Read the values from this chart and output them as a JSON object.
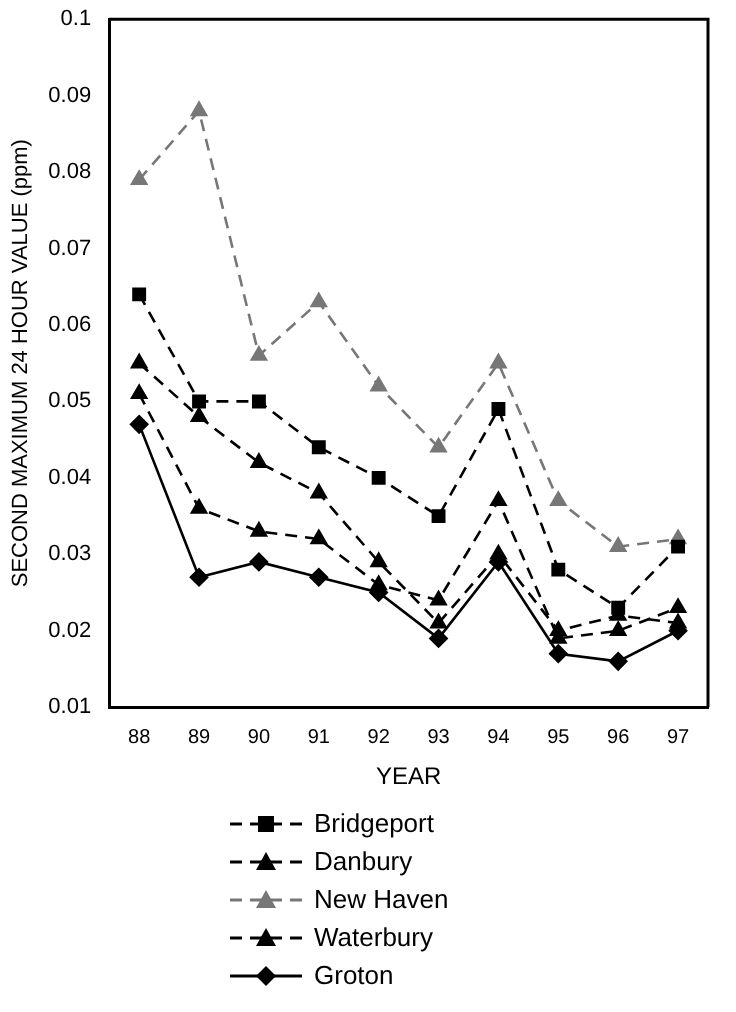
{
  "chart_data": {
    "type": "line",
    "xlabel": "YEAR",
    "ylabel": "SECOND MAXIMUM 24 HOUR VALUE (ppm)",
    "categories": [
      "88",
      "89",
      "90",
      "91",
      "92",
      "93",
      "94",
      "95",
      "96",
      "97"
    ],
    "ylim": [
      0.01,
      0.1
    ],
    "yticks": [
      0.01,
      0.02,
      0.03,
      0.04,
      0.05,
      0.06,
      0.07,
      0.08,
      0.09,
      0.1
    ],
    "grid": false,
    "legend": "bottom",
    "series": [
      {
        "name": "Bridgeport",
        "color": "#000000",
        "marker": "square",
        "line_style": "dashed",
        "values": [
          0.064,
          0.05,
          0.05,
          0.044,
          0.04,
          0.035,
          0.049,
          0.028,
          0.023,
          0.031
        ]
      },
      {
        "name": "Danbury",
        "color": "#000000",
        "marker": "triangle",
        "line_style": "dashed",
        "values": [
          0.051,
          0.036,
          0.033,
          0.032,
          0.026,
          0.024,
          0.037,
          0.019,
          0.02,
          0.023
        ]
      },
      {
        "name": "New Haven",
        "color": "#777777",
        "marker": "triangle",
        "line_style": "dashed",
        "values": [
          0.079,
          0.088,
          0.056,
          0.063,
          0.052,
          0.044,
          0.055,
          0.037,
          0.031,
          0.032
        ]
      },
      {
        "name": "Waterbury",
        "color": "#000000",
        "marker": "triangle",
        "line_style": "dashed",
        "values": [
          0.055,
          0.048,
          0.042,
          0.038,
          0.029,
          0.021,
          0.03,
          0.02,
          0.022,
          0.021
        ]
      },
      {
        "name": "Groton",
        "color": "#000000",
        "marker": "diamond",
        "line_style": "solid",
        "values": [
          0.047,
          0.027,
          0.029,
          0.027,
          0.025,
          0.019,
          0.029,
          0.017,
          0.016,
          0.02
        ]
      }
    ]
  }
}
